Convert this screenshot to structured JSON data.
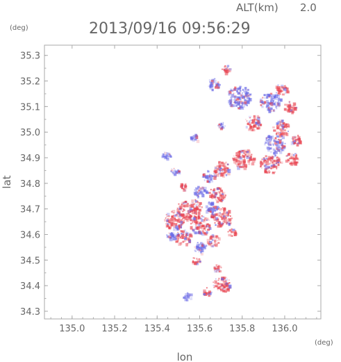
{
  "chart_data": {
    "type": "heatmap",
    "title": "2013/09/16 09:56:29",
    "altitude_label": "ALT(km)",
    "altitude_value": "2.0",
    "xlabel": "lon",
    "ylabel": "lat",
    "x_unit": "(deg)",
    "y_unit": "(deg)",
    "xlim": [
      134.87,
      136.17
    ],
    "ylim": [
      34.27,
      35.34
    ],
    "xticks": [
      135.0,
      135.2,
      135.4,
      135.6,
      135.8,
      136.0
    ],
    "xtick_labels": [
      "135.0",
      "135.2",
      "135.4",
      "135.6",
      "135.8",
      "136.0"
    ],
    "yticks": [
      34.3,
      34.4,
      34.5,
      34.6,
      34.7,
      34.8,
      34.9,
      35.0,
      35.1,
      35.2,
      35.3
    ],
    "ytick_labels": [
      "34.3",
      "34.4",
      "34.5",
      "34.6",
      "34.7",
      "34.8",
      "34.9",
      "35.0",
      "35.1",
      "35.2",
      "35.3"
    ],
    "colors": {
      "positive": "#e8434f",
      "negative": "#6a6ae6",
      "frame": "#aaaaaa",
      "text": "#666666"
    },
    "regions": [
      {
        "lon": 135.72,
        "lat": 35.25,
        "r": 0.02,
        "sign": 1
      },
      {
        "lon": 135.66,
        "lat": 35.19,
        "r": 0.03,
        "sign": -1
      },
      {
        "lon": 135.78,
        "lat": 35.14,
        "r": 0.06,
        "sign": -1
      },
      {
        "lon": 135.93,
        "lat": 35.12,
        "r": 0.05,
        "sign": -1
      },
      {
        "lon": 135.98,
        "lat": 35.17,
        "r": 0.03,
        "sign": 1
      },
      {
        "lon": 136.02,
        "lat": 35.1,
        "r": 0.03,
        "sign": 1
      },
      {
        "lon": 135.85,
        "lat": 35.04,
        "r": 0.04,
        "sign": 1
      },
      {
        "lon": 135.98,
        "lat": 35.02,
        "r": 0.04,
        "sign": 1
      },
      {
        "lon": 135.95,
        "lat": 34.96,
        "r": 0.05,
        "sign": -1
      },
      {
        "lon": 136.05,
        "lat": 34.97,
        "r": 0.03,
        "sign": 1
      },
      {
        "lon": 135.7,
        "lat": 35.03,
        "r": 0.02,
        "sign": -1
      },
      {
        "lon": 135.57,
        "lat": 34.98,
        "r": 0.02,
        "sign": -1
      },
      {
        "lon": 135.8,
        "lat": 34.9,
        "r": 0.05,
        "sign": 1
      },
      {
        "lon": 135.93,
        "lat": 34.88,
        "r": 0.05,
        "sign": 1
      },
      {
        "lon": 136.03,
        "lat": 34.9,
        "r": 0.03,
        "sign": 1
      },
      {
        "lon": 135.7,
        "lat": 34.86,
        "r": 0.04,
        "sign": 1
      },
      {
        "lon": 135.64,
        "lat": 34.83,
        "r": 0.03,
        "sign": -1
      },
      {
        "lon": 135.44,
        "lat": 34.91,
        "r": 0.02,
        "sign": -1
      },
      {
        "lon": 135.48,
        "lat": 34.85,
        "r": 0.02,
        "sign": -1
      },
      {
        "lon": 135.52,
        "lat": 34.79,
        "r": 0.02,
        "sign": 1
      },
      {
        "lon": 135.6,
        "lat": 34.77,
        "r": 0.03,
        "sign": -1
      },
      {
        "lon": 135.68,
        "lat": 34.76,
        "r": 0.04,
        "sign": 1
      },
      {
        "lon": 135.55,
        "lat": 34.7,
        "r": 0.06,
        "sign": 1
      },
      {
        "lon": 135.48,
        "lat": 34.66,
        "r": 0.05,
        "sign": 1
      },
      {
        "lon": 135.6,
        "lat": 34.64,
        "r": 0.05,
        "sign": 1
      },
      {
        "lon": 135.7,
        "lat": 34.67,
        "r": 0.05,
        "sign": 1
      },
      {
        "lon": 135.65,
        "lat": 34.71,
        "r": 0.03,
        "sign": -1
      },
      {
        "lon": 135.52,
        "lat": 34.59,
        "r": 0.04,
        "sign": 1
      },
      {
        "lon": 135.46,
        "lat": 34.6,
        "r": 0.02,
        "sign": -1
      },
      {
        "lon": 135.6,
        "lat": 34.55,
        "r": 0.03,
        "sign": -1
      },
      {
        "lon": 135.66,
        "lat": 34.58,
        "r": 0.03,
        "sign": 1
      },
      {
        "lon": 135.75,
        "lat": 34.61,
        "r": 0.02,
        "sign": 1
      },
      {
        "lon": 135.58,
        "lat": 34.5,
        "r": 0.02,
        "sign": 1
      },
      {
        "lon": 135.68,
        "lat": 34.47,
        "r": 0.02,
        "sign": 1
      },
      {
        "lon": 135.7,
        "lat": 34.41,
        "r": 0.04,
        "sign": 1
      },
      {
        "lon": 135.63,
        "lat": 34.38,
        "r": 0.02,
        "sign": 1
      },
      {
        "lon": 135.54,
        "lat": 34.36,
        "r": 0.02,
        "sign": -1
      }
    ]
  }
}
